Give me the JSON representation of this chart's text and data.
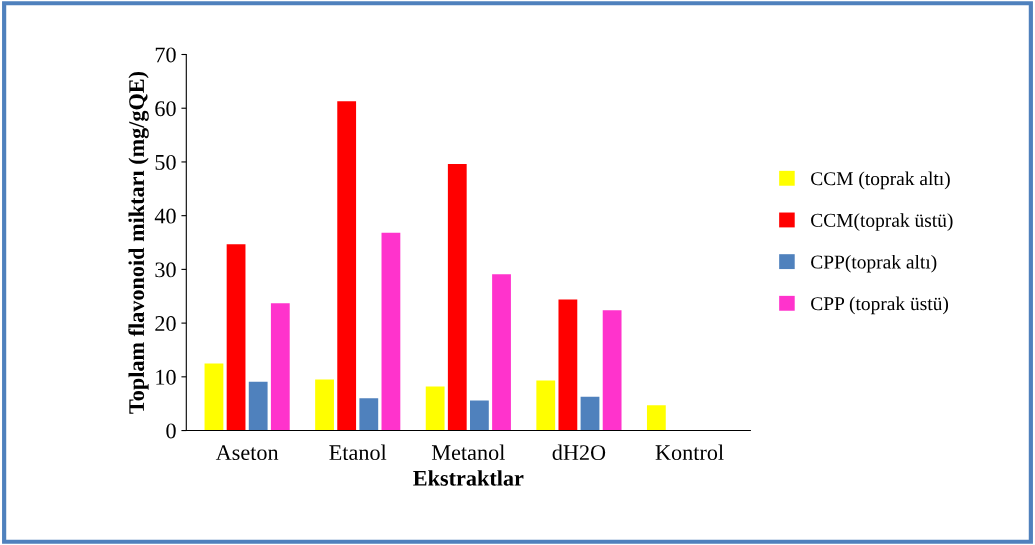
{
  "chart_data": {
    "type": "bar",
    "xlabel": "Ekstraktlar",
    "ylabel": "Toplam flavonoid miktarı (mg/gQE)",
    "categories": [
      "Aseton",
      "Etanol",
      "Metanol",
      "dH2O",
      "Kontrol"
    ],
    "series": [
      {
        "name": "CCM (toprak altı)",
        "color": "#ffff00",
        "values": [
          12.5,
          9.5,
          8.2,
          9.3,
          4.7
        ]
      },
      {
        "name": "CCM(toprak üstü)",
        "color": "#ff0000",
        "values": [
          34.7,
          61.3,
          49.6,
          24.4,
          null
        ]
      },
      {
        "name": "CPP(toprak altı)",
        "color": "#4f81bd",
        "values": [
          9.1,
          6.0,
          5.6,
          6.3,
          null
        ]
      },
      {
        "name": "CPP (toprak üstü)",
        "color": "#ff33cc",
        "values": [
          23.7,
          36.8,
          29.1,
          22.4,
          null
        ]
      }
    ],
    "ylim": [
      0,
      70
    ],
    "yticks": [
      0,
      10,
      20,
      30,
      40,
      50,
      60,
      70
    ],
    "grid": false,
    "legend": "right"
  }
}
